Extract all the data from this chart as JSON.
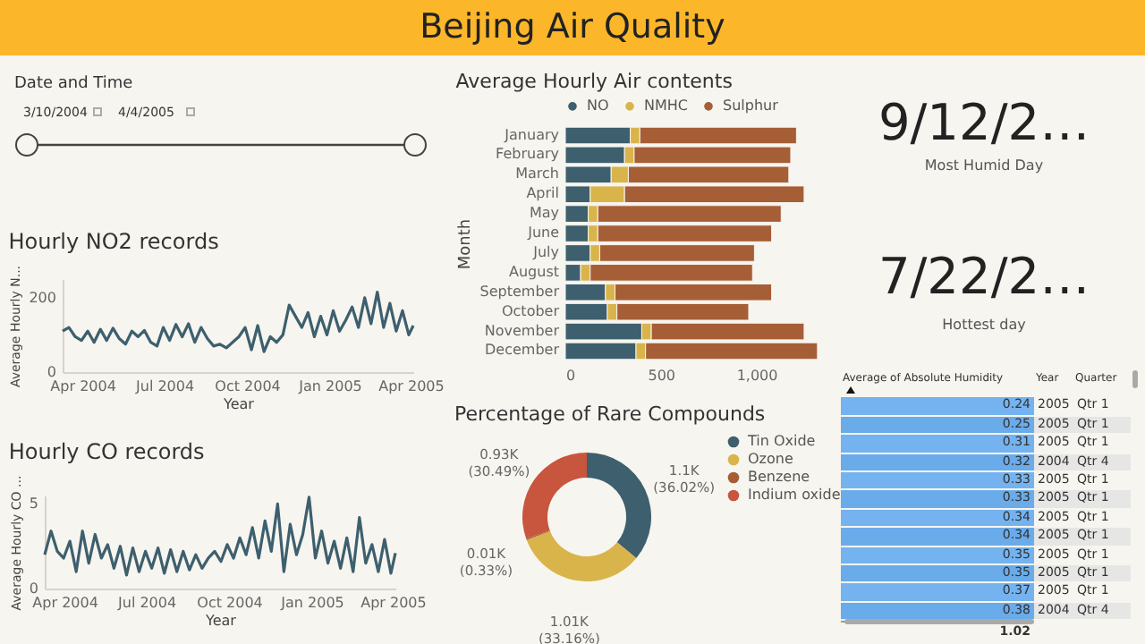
{
  "chart_data": [
    {
      "type": "other",
      "title": "Beijing Air Quality",
      "annotations": [
        "Date and Time",
        "3/10/2004",
        "4/4/2005",
        "9/12/2…",
        "Most Humid Day",
        "7/22/2…",
        "Hottest day"
      ]
    },
    {
      "type": "line",
      "title": "Hourly NO2 records",
      "xlabel": "Year",
      "ylabel": "Average Hourly N...",
      "ylim": [
        0,
        250
      ],
      "yticks": [
        0,
        200
      ],
      "xlim": [
        "2004-03-10",
        "2005-04-04"
      ],
      "xticks": [
        {
          "value": "2004-04-01",
          "label": "Apr 2004"
        },
        {
          "value": "2004-07-01",
          "label": "Jul 2004"
        },
        {
          "value": "2004-10-01",
          "label": "Oct 2004"
        },
        {
          "value": "2005-01-01",
          "label": "Jan 2005"
        },
        {
          "value": "2005-04-01",
          "label": "Apr 2005"
        }
      ],
      "x": [
        "2004-03-10",
        "2004-03-17",
        "2004-03-24",
        "2004-03-31",
        "2004-04-07",
        "2004-04-14",
        "2004-04-21",
        "2004-04-28",
        "2004-05-05",
        "2004-05-12",
        "2004-05-19",
        "2004-05-26",
        "2004-06-02",
        "2004-06-09",
        "2004-06-16",
        "2004-06-23",
        "2004-06-30",
        "2004-07-07",
        "2004-07-14",
        "2004-07-21",
        "2004-07-28",
        "2004-08-04",
        "2004-08-11",
        "2004-08-18",
        "2004-08-25",
        "2004-09-01",
        "2004-09-08",
        "2004-09-15",
        "2004-09-22",
        "2004-09-29",
        "2004-10-06",
        "2004-10-13",
        "2004-10-20",
        "2004-10-27",
        "2004-11-03",
        "2004-11-10",
        "2004-11-17",
        "2004-11-24",
        "2004-12-01",
        "2004-12-08",
        "2004-12-15",
        "2004-12-22",
        "2004-12-29",
        "2005-01-05",
        "2005-01-12",
        "2005-01-19",
        "2005-01-26",
        "2005-02-02",
        "2005-02-09",
        "2005-02-16",
        "2005-02-23",
        "2005-03-02",
        "2005-03-09",
        "2005-03-16",
        "2005-03-23",
        "2005-03-30",
        "2005-04-04"
      ],
      "series": [
        {
          "color": "#3d5f6e",
          "values": [
            110,
            120,
            95,
            85,
            110,
            80,
            115,
            85,
            118,
            90,
            75,
            110,
            95,
            112,
            80,
            70,
            120,
            85,
            128,
            95,
            130,
            80,
            120,
            90,
            70,
            75,
            65,
            80,
            95,
            120,
            60,
            125,
            55,
            95,
            80,
            100,
            180,
            150,
            120,
            160,
            95,
            150,
            100,
            165,
            110,
            140,
            175,
            120,
            200,
            130,
            215,
            120,
            185,
            110,
            165,
            100,
            125
          ]
        }
      ]
    },
    {
      "type": "line",
      "title": "Hourly CO records",
      "xlabel": "Year",
      "ylabel": "Average Hourly CO ...",
      "ylim": [
        0,
        5.5
      ],
      "yticks": [
        0,
        5
      ],
      "xlim": [
        "2004-03-10",
        "2005-04-04"
      ],
      "xticks": [
        {
          "value": "2004-04-01",
          "label": "Apr 2004"
        },
        {
          "value": "2004-07-01",
          "label": "Jul 2004"
        },
        {
          "value": "2004-10-01",
          "label": "Oct 2004"
        },
        {
          "value": "2005-01-01",
          "label": "Jan 2005"
        },
        {
          "value": "2005-04-01",
          "label": "Apr 2005"
        }
      ],
      "x": [
        "2004-03-10",
        "2004-03-17",
        "2004-03-24",
        "2004-03-31",
        "2004-04-07",
        "2004-04-14",
        "2004-04-21",
        "2004-04-28",
        "2004-05-05",
        "2004-05-12",
        "2004-05-19",
        "2004-05-26",
        "2004-06-02",
        "2004-06-09",
        "2004-06-16",
        "2004-06-23",
        "2004-06-30",
        "2004-07-07",
        "2004-07-14",
        "2004-07-21",
        "2004-07-28",
        "2004-08-04",
        "2004-08-11",
        "2004-08-18",
        "2004-08-25",
        "2004-09-01",
        "2004-09-08",
        "2004-09-15",
        "2004-09-22",
        "2004-09-29",
        "2004-10-06",
        "2004-10-13",
        "2004-10-20",
        "2004-10-27",
        "2004-11-03",
        "2004-11-10",
        "2004-11-17",
        "2004-11-24",
        "2004-12-01",
        "2004-12-08",
        "2004-12-15",
        "2004-12-22",
        "2004-12-29",
        "2005-01-05",
        "2005-01-12",
        "2005-01-19",
        "2005-01-26",
        "2005-02-02",
        "2005-02-09",
        "2005-02-16",
        "2005-02-23",
        "2005-03-02",
        "2005-03-09",
        "2005-03-16",
        "2005-03-23",
        "2005-03-30",
        "2005-04-04"
      ],
      "series": [
        {
          "color": "#3d5f6e",
          "values": [
            2.0,
            3.4,
            2.2,
            1.8,
            2.8,
            1.0,
            3.4,
            1.5,
            3.2,
            1.8,
            2.6,
            1.2,
            2.5,
            0.8,
            2.4,
            1.0,
            2.2,
            1.2,
            2.4,
            0.9,
            2.3,
            1.0,
            2.2,
            1.1,
            2.0,
            1.2,
            1.8,
            2.2,
            1.6,
            2.6,
            1.8,
            3.0,
            2.0,
            3.6,
            1.8,
            4.0,
            2.2,
            5.0,
            1.0,
            3.8,
            2.0,
            3.2,
            5.4,
            1.8,
            3.4,
            1.5,
            2.8,
            1.2,
            3.0,
            1.0,
            4.2,
            1.5,
            2.6,
            1.0,
            2.9,
            0.9,
            2.1
          ]
        }
      ]
    },
    {
      "type": "bar",
      "orientation": "horizontal",
      "stacked": true,
      "title": "Average Hourly Air contents",
      "ylabel": "Month",
      "legend": "top left",
      "xlim": [
        0,
        1330
      ],
      "xticks": [
        0,
        500,
        {
          "value": 1000,
          "label": "1,000"
        }
      ],
      "categories": [
        "January",
        "February",
        "March",
        "April",
        "May",
        "June",
        "July",
        "August",
        "September",
        "October",
        "November",
        "December"
      ],
      "series": [
        {
          "name": "NO",
          "color": "#3d5f6e",
          "values": [
            340,
            310,
            240,
            130,
            120,
            120,
            130,
            80,
            210,
            220,
            400,
            370
          ]
        },
        {
          "name": "NMHC",
          "color": "#d9b44a",
          "values": [
            50,
            50,
            90,
            180,
            50,
            50,
            50,
            50,
            50,
            50,
            50,
            50
          ]
        },
        {
          "name": "Sulphur",
          "color": "#a65e36",
          "values": [
            820,
            820,
            840,
            940,
            960,
            910,
            810,
            850,
            820,
            690,
            800,
            900
          ]
        }
      ]
    },
    {
      "type": "donut",
      "title": "Percentage of Rare Compounds",
      "legend": "right",
      "categories": [
        "Tin Oxide",
        "Ozone",
        "Benzene",
        "Indium oxide"
      ],
      "values": [
        1100,
        1010,
        10,
        930
      ],
      "colors": [
        "#3d5f6e",
        "#d9b44a",
        "#a65e36",
        "#c8553d"
      ],
      "value_labels": [
        "1.1K (36.02%)",
        "1.01K (33.16%)",
        "0.01K (0.33%)",
        "0.93K (30.49%)"
      ]
    },
    {
      "type": "other",
      "annotations": [
        "Average of Absolute Humidity",
        "Year",
        "Quarter",
        "0.24",
        "2005",
        "Qtr 1",
        "0.25",
        "2005",
        "Qtr 1",
        "0.31",
        "2005",
        "Qtr 1",
        "0.32",
        "2004",
        "Qtr 4",
        "0.33",
        "2005",
        "Qtr 1",
        "0.33",
        "2005",
        "Qtr 1",
        "0.34",
        "2005",
        "Qtr 1",
        "0.34",
        "2005",
        "Qtr 1",
        "0.35",
        "2005",
        "Qtr 1",
        "0.35",
        "2005",
        "Qtr 1",
        "0.37",
        "2005",
        "Qtr 1",
        "0.38",
        "2004",
        "Qtr 4",
        "1.02"
      ]
    }
  ]
}
